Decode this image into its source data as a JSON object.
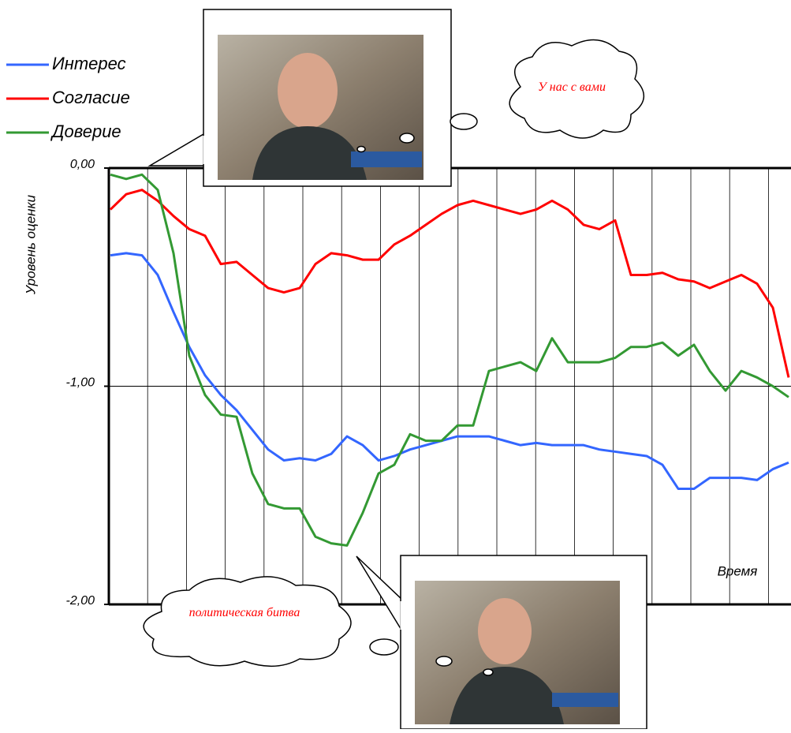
{
  "chart_data": {
    "type": "line",
    "y_label": "Уровень оценки",
    "x_label": "Время",
    "ylim": [
      -2,
      0
    ],
    "yticks": [
      {
        "value": 0,
        "label": "0,00"
      },
      {
        "value": -1,
        "label": "-1,00"
      },
      {
        "value": -2,
        "label": "-2,00"
      }
    ],
    "grid": true,
    "legend": "top-left",
    "annotations": [
      "У нас с вами",
      "политическая битва"
    ],
    "series": [
      {
        "name": "Интерес",
        "color": "#3366ff",
        "values": [
          -0.4,
          -0.39,
          -0.4,
          -0.49,
          -0.66,
          -0.82,
          -0.95,
          -1.04,
          -1.11,
          -1.2,
          -1.29,
          -1.34,
          -1.33,
          -1.34,
          -1.31,
          -1.23,
          -1.27,
          -1.34,
          -1.32,
          -1.29,
          -1.27,
          -1.25,
          -1.23,
          -1.23,
          -1.23,
          -1.25,
          -1.27,
          -1.26,
          -1.27,
          -1.27,
          -1.27,
          -1.29,
          -1.3,
          -1.31,
          -1.32,
          -1.36,
          -1.47,
          -1.47,
          -1.42,
          -1.42,
          -1.42,
          -1.43,
          -1.38,
          -1.35
        ]
      },
      {
        "name": "Согласие",
        "color": "#ff0000",
        "values": [
          -0.19,
          -0.12,
          -0.1,
          -0.15,
          -0.22,
          -0.28,
          -0.31,
          -0.44,
          -0.43,
          -0.49,
          -0.55,
          -0.57,
          -0.55,
          -0.44,
          -0.39,
          -0.4,
          -0.42,
          -0.42,
          -0.35,
          -0.31,
          -0.26,
          -0.21,
          -0.17,
          -0.15,
          -0.17,
          -0.19,
          -0.21,
          -0.19,
          -0.15,
          -0.19,
          -0.26,
          -0.28,
          -0.24,
          -0.49,
          -0.49,
          -0.48,
          -0.51,
          -0.52,
          -0.55,
          -0.52,
          -0.49,
          -0.53,
          -0.64,
          -0.96
        ]
      },
      {
        "name": "Доверие",
        "color": "#339933",
        "values": [
          -0.03,
          -0.05,
          -0.03,
          -0.1,
          -0.39,
          -0.86,
          -1.04,
          -1.13,
          -1.14,
          -1.4,
          -1.54,
          -1.56,
          -1.56,
          -1.69,
          -1.72,
          -1.73,
          -1.58,
          -1.4,
          -1.36,
          -1.22,
          -1.25,
          -1.25,
          -1.18,
          -1.18,
          -0.93,
          -0.91,
          -0.89,
          -0.93,
          -0.78,
          -0.89,
          -0.89,
          -0.89,
          -0.87,
          -0.82,
          -0.82,
          -0.8,
          -0.86,
          -0.81,
          -0.93,
          -1.02,
          -0.93,
          -0.96,
          -1.0,
          -1.05
        ]
      }
    ]
  }
}
